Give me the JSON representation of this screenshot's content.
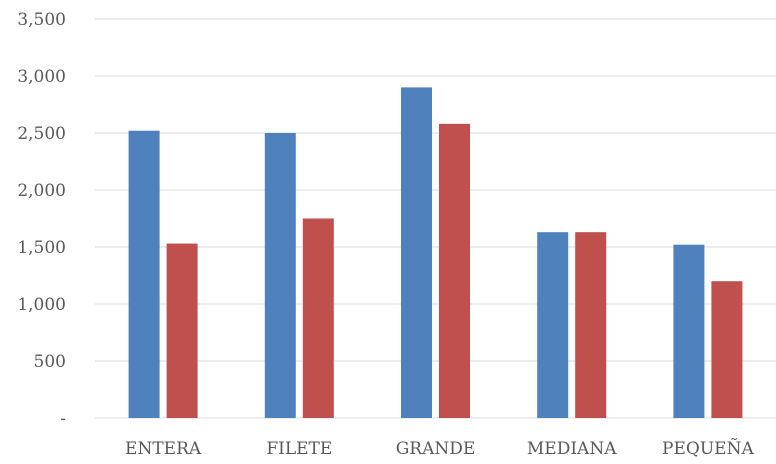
{
  "chart_data": {
    "type": "bar",
    "categories": [
      "ENTERA",
      "FILETE",
      "GRANDE",
      "MEDIANA",
      "PEQUEÑA"
    ],
    "series": [
      {
        "values": [
          2520,
          2500,
          2900,
          1630,
          1520
        ],
        "color": "#4F81BD"
      },
      {
        "values": [
          1530,
          1750,
          2580,
          1630,
          1200
        ],
        "color": "#C0504D"
      }
    ],
    "ylim": [
      0,
      3500
    ],
    "yticks": [
      0,
      500,
      1000,
      1500,
      2000,
      2500,
      3000,
      3500
    ],
    "ytick_labels": [
      "-",
      "500",
      "1,000",
      "1,500",
      "2,000",
      "2,500",
      "3,000",
      "3,500"
    ],
    "grid": true,
    "gridline_color": "#D9D9D9",
    "legend": "none",
    "title": "",
    "xlabel": "",
    "ylabel": ""
  }
}
